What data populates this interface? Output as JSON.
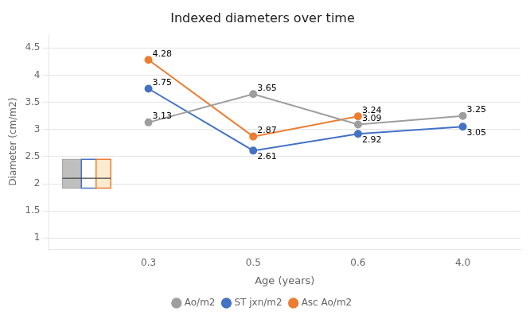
{
  "chart_data": {
    "type": "line",
    "title": "Indexed diameters over time",
    "xlabel": "Age (years)",
    "ylabel": "Diameter (cm/m2)",
    "categories": [
      "0.3",
      "0.5",
      "0.6",
      "4.0"
    ],
    "series": [
      {
        "name": "Ao/m2",
        "color": "#9E9E9E",
        "values": [
          3.13,
          3.65,
          3.09,
          3.25
        ]
      },
      {
        "name": "ST jxn/m2",
        "color": "#4472C4",
        "values": [
          3.75,
          2.61,
          2.92,
          3.05
        ]
      },
      {
        "name": "Asc Ao/m2",
        "color": "#ED7D31",
        "values": [
          4.28,
          2.87,
          3.24,
          null
        ]
      }
    ],
    "ylim": [
      0.8,
      4.75
    ],
    "yticks": [
      1,
      1.5,
      2,
      2.5,
      3,
      3.5,
      4,
      4.5
    ],
    "grid": true,
    "legend": "bottom",
    "data_labels": true,
    "marker": "circle",
    "normal_range": {
      "low": 1.92,
      "high": 2.45,
      "line": 2.1
    }
  }
}
